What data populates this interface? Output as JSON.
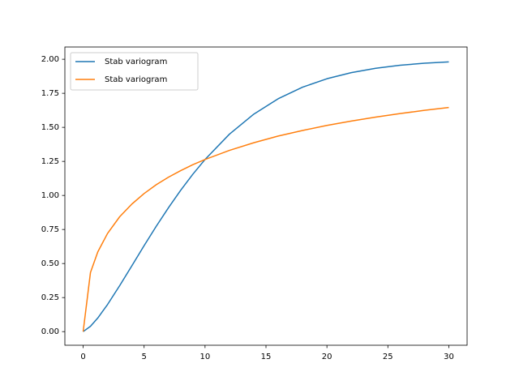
{
  "chart_data": {
    "type": "line",
    "x": [
      0,
      0.6,
      1.2,
      2,
      3,
      4,
      5,
      6,
      7,
      8,
      9,
      10,
      12,
      14,
      16,
      18,
      20,
      22,
      24,
      26,
      28,
      30
    ],
    "series": [
      {
        "name": "Stab variogram",
        "color": "#1f77b4",
        "values": [
          0,
          0.039,
          0.1,
          0.199,
          0.338,
          0.484,
          0.631,
          0.774,
          0.91,
          1.038,
          1.156,
          1.264,
          1.45,
          1.597,
          1.71,
          1.795,
          1.857,
          1.902,
          1.934,
          1.956,
          1.971,
          1.981
        ]
      },
      {
        "name": "Stab variogram",
        "color": "#ff7f0e",
        "values": [
          0,
          0.434,
          0.585,
          0.721,
          0.844,
          0.937,
          1.014,
          1.079,
          1.134,
          1.182,
          1.226,
          1.264,
          1.331,
          1.387,
          1.436,
          1.477,
          1.514,
          1.546,
          1.575,
          1.601,
          1.625,
          1.646
        ]
      }
    ],
    "xlim": [
      -1.5,
      31.5
    ],
    "xticks": [
      0,
      5,
      10,
      15,
      20,
      25,
      30
    ],
    "ylim": [
      -0.1,
      2.09
    ],
    "yticks": [
      {
        "value": 0,
        "label": "0.00"
      },
      {
        "value": 0.25,
        "label": "0.25"
      },
      {
        "value": 0.5,
        "label": "0.50"
      },
      {
        "value": 0.75,
        "label": "0.75"
      },
      {
        "value": 1,
        "label": "1.00"
      },
      {
        "value": 1.25,
        "label": "1.25"
      },
      {
        "value": 1.5,
        "label": "1.50"
      },
      {
        "value": 1.75,
        "label": "1.75"
      },
      {
        "value": 2,
        "label": "2.00"
      }
    ],
    "grid": false,
    "legend": "upper left"
  }
}
